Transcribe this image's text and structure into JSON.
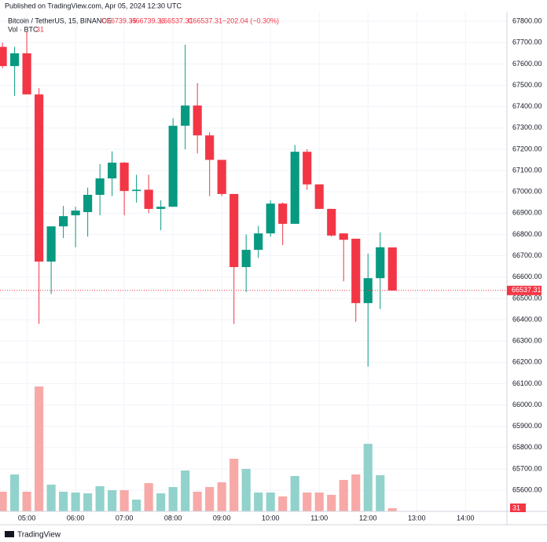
{
  "header": {
    "published": "Published on TradingView.com, Apr 05, 2024 12:30 UTC",
    "symbol": "Bitcoin / TetherUS, 15, BINANCE",
    "open": "O66739.35",
    "high": "H66739.36",
    "low": "L66537.31",
    "close": "C66537.31",
    "change": "−202.04 (−0.30%)",
    "vol_label": "Vol · BTC",
    "vol_value": "31"
  },
  "chart_data": {
    "type": "candlestick",
    "x": [
      4.5,
      4.75,
      5,
      5.25,
      5.5,
      5.75,
      6,
      6.25,
      6.5,
      6.75,
      7,
      7.25,
      7.5,
      7.75,
      8,
      8.25,
      8.5,
      8.75,
      9,
      9.25,
      9.5,
      9.75,
      10,
      10.25,
      10.5,
      10.75,
      11,
      11.25,
      11.5,
      11.75,
      12,
      12.25,
      12.5
    ],
    "open": [
      67680,
      67590,
      67650,
      67457,
      66673,
      66838,
      66890,
      66905,
      66986,
      67063,
      67137,
      67004,
      67010,
      66920,
      66930,
      67310,
      67405,
      67265,
      67150,
      66990,
      66647,
      66728,
      66805,
      66945,
      66850,
      67188,
      67035,
      66920,
      66805,
      66780,
      66478,
      66595,
      66739.35
    ],
    "high": [
      67700,
      67680,
      67752,
      67487,
      66838,
      66934,
      66930,
      67020,
      67130,
      67190,
      67140,
      67080,
      67080,
      66960,
      67345,
      67690,
      67510,
      67280,
      67150,
      66990,
      66800,
      66840,
      66960,
      66950,
      67220,
      67200,
      67035,
      66920,
      66805,
      66780,
      66710,
      66810,
      66739.36
    ],
    "low": [
      67580,
      67450,
      67457,
      66381,
      66521,
      66783,
      66740,
      66790,
      66890,
      66980,
      66890,
      66950,
      66900,
      66820,
      66930,
      67200,
      67180,
      66980,
      66980,
      66380,
      66530,
      66690,
      66790,
      66750,
      66850,
      67010,
      66920,
      66790,
      66580,
      66390,
      66180,
      66450,
      66537.31
    ],
    "close": [
      67590,
      67650,
      67457,
      66673,
      66838,
      66886,
      66912,
      66986,
      67063,
      67137,
      67004,
      67010,
      66920,
      66930,
      67310,
      67405,
      67265,
      67150,
      66990,
      66647,
      66728,
      66805,
      66945,
      66850,
      67188,
      67035,
      66920,
      66795,
      66775,
      66478,
      66595,
      66740,
      66537.31
    ],
    "volume": [
      194,
      364,
      194,
      1232,
      264,
      194,
      186,
      178,
      248,
      209,
      209,
      116,
      279,
      178,
      240,
      403,
      194,
      240,
      287,
      519,
      419,
      186,
      186,
      147,
      349,
      186,
      186,
      163,
      310,
      364,
      667,
      357,
      31
    ],
    "xlim": [
      4.45,
      14.85
    ],
    "xticks": [
      {
        "value": 5,
        "label": "05:00"
      },
      {
        "value": 6,
        "label": "06:00"
      },
      {
        "value": 7,
        "label": "07:00"
      },
      {
        "value": 8,
        "label": "08:00"
      },
      {
        "value": 9,
        "label": "09:00"
      },
      {
        "value": 10,
        "label": "10:00"
      },
      {
        "value": 11,
        "label": "11:00"
      },
      {
        "value": 12,
        "label": "12:00"
      },
      {
        "value": 13,
        "label": "13:00"
      },
      {
        "value": 14,
        "label": "14:00"
      }
    ],
    "ylim": [
      65501,
      67900
    ],
    "yticks": [
      {
        "value": 65600,
        "label": "65600.00"
      },
      {
        "value": 65700,
        "label": "65700.00"
      },
      {
        "value": 65800,
        "label": "65800.00"
      },
      {
        "value": 65900,
        "label": "65900.00"
      },
      {
        "value": 66000,
        "label": "66000.00"
      },
      {
        "value": 66100,
        "label": "66100.00"
      },
      {
        "value": 66200,
        "label": "66200.00"
      },
      {
        "value": 66300,
        "label": "66300.00"
      },
      {
        "value": 66400,
        "label": "66400.00"
      },
      {
        "value": 66500,
        "label": "66500.00"
      },
      {
        "value": 66600,
        "label": "66600.00"
      },
      {
        "value": 66700,
        "label": "66700.00"
      },
      {
        "value": 66800,
        "label": "66800.00"
      },
      {
        "value": 66900,
        "label": "66900.00"
      },
      {
        "value": 67000,
        "label": "67000.00"
      },
      {
        "value": 67100,
        "label": "67100.00"
      },
      {
        "value": 67200,
        "label": "67200.00"
      },
      {
        "value": 67300,
        "label": "67300.00"
      },
      {
        "value": 67400,
        "label": "67400.00"
      },
      {
        "value": 67500,
        "label": "67500.00"
      },
      {
        "value": 67600,
        "label": "67600.00"
      },
      {
        "value": 67700,
        "label": "67700.00"
      },
      {
        "value": 67800,
        "label": "67800.00"
      }
    ],
    "vlim": [
      0,
      5045
    ],
    "grid": true,
    "up_color": "#089981",
    "down_color": "#f23645",
    "volume_up_color": "#92d2cc",
    "volume_down_color": "#f7a9a7"
  },
  "footer": {
    "brand": "TradingView"
  }
}
